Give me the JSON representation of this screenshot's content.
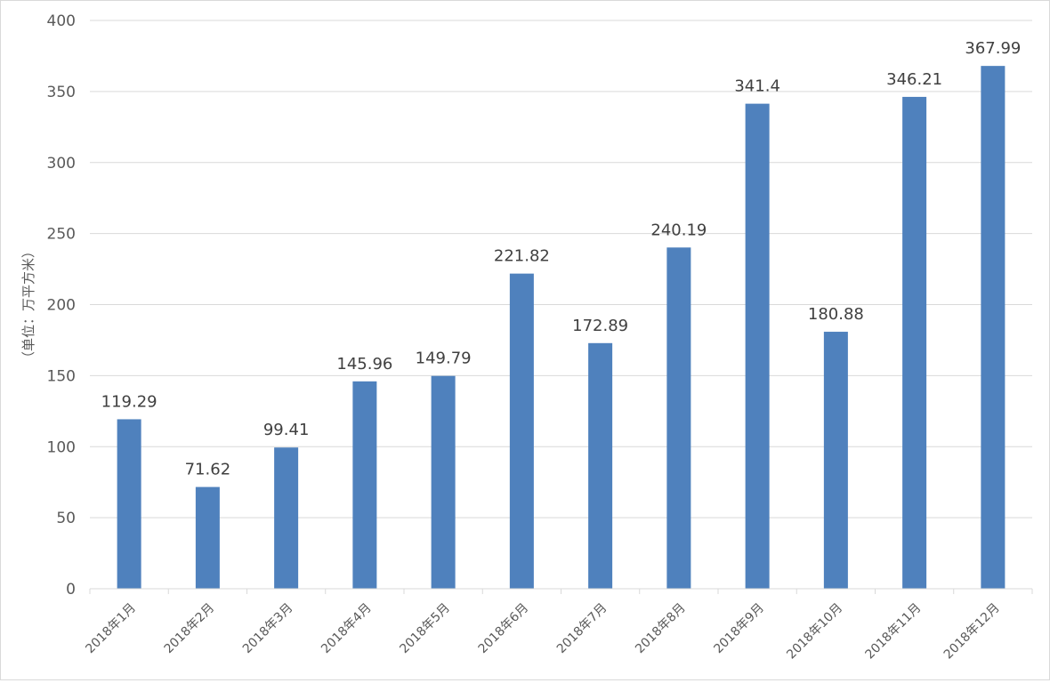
{
  "chart_data": {
    "type": "bar",
    "title": "",
    "xlabel": "",
    "ylabel": "（单位：万平方米）",
    "categories": [
      "2018年1月",
      "2018年2月",
      "2018年3月",
      "2018年4月",
      "2018年5月",
      "2018年6月",
      "2018年7月",
      "2018年8月",
      "2018年9月",
      "2018年10月",
      "2018年11月",
      "2018年12月"
    ],
    "values": [
      119.29,
      71.62,
      99.41,
      145.96,
      149.79,
      221.82,
      172.89,
      240.19,
      341.4,
      180.88,
      346.21,
      367.99
    ],
    "data_labels": [
      "119.29",
      "71.62",
      "99.41",
      "145.96",
      "149.79",
      "221.82",
      "172.89",
      "240.19",
      "341.4",
      "180.88",
      "346.21",
      "367.99"
    ],
    "ylim": [
      0,
      400
    ],
    "yticks": [
      0,
      50,
      100,
      150,
      200,
      250,
      300,
      350,
      400
    ],
    "grid": true,
    "legend": "none",
    "colors": {
      "bar": "#4F81BD",
      "grid": "#d9d9d9",
      "text": "#595959",
      "label": "#404040"
    }
  }
}
